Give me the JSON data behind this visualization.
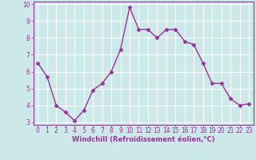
{
  "x": [
    0,
    1,
    2,
    3,
    4,
    5,
    6,
    7,
    8,
    9,
    10,
    11,
    12,
    13,
    14,
    15,
    16,
    17,
    18,
    19,
    20,
    21,
    22,
    23
  ],
  "y": [
    6.5,
    5.7,
    4.0,
    3.6,
    3.1,
    3.7,
    4.9,
    5.3,
    6.0,
    7.3,
    9.8,
    8.5,
    8.5,
    8.0,
    8.5,
    8.5,
    7.8,
    7.6,
    6.5,
    5.3,
    5.3,
    4.4,
    4.0,
    4.1
  ],
  "line_color": "#993399",
  "marker": "D",
  "marker_size": 2.5,
  "bg_color": "#cce8e8",
  "grid_color": "#ffffff",
  "xlabel": "Windchill (Refroidissement éolien,°C)",
  "xlabel_color": "#993399",
  "tick_color": "#993399",
  "spine_color": "#993399",
  "ylim": [
    3,
    10
  ],
  "xlim": [
    -0.5,
    23.5
  ],
  "yticks": [
    3,
    4,
    5,
    6,
    7,
    8,
    9,
    10
  ],
  "xticks": [
    0,
    1,
    2,
    3,
    4,
    5,
    6,
    7,
    8,
    9,
    10,
    11,
    12,
    13,
    14,
    15,
    16,
    17,
    18,
    19,
    20,
    21,
    22,
    23
  ],
  "tick_fontsize": 5.5,
  "xlabel_fontsize": 6.0,
  "linewidth": 1.0
}
